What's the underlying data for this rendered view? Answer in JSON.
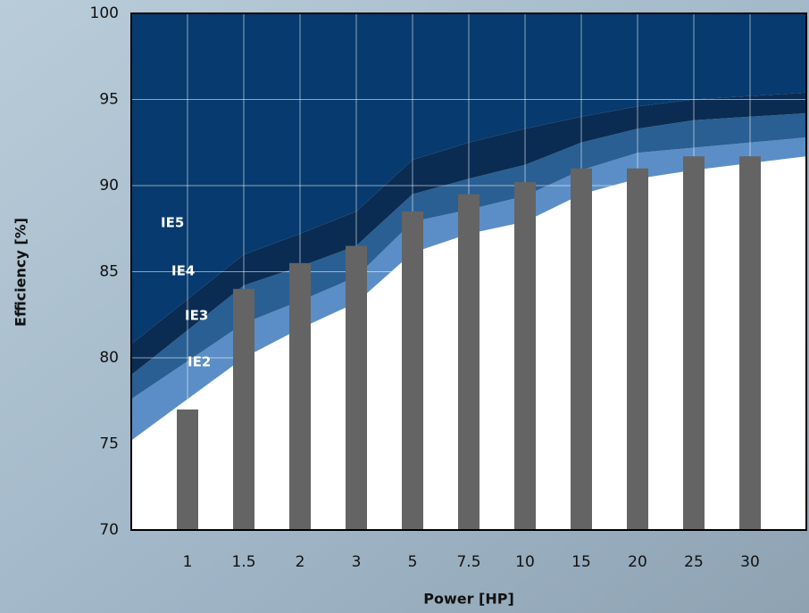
{
  "chart_data": {
    "type": "bar",
    "x_label": "Power [HP]",
    "y_label": "Efficiency [%]",
    "categories": [
      "1",
      "1.5",
      "2",
      "3",
      "5",
      "7.5",
      "10",
      "15",
      "20",
      "25",
      "30"
    ],
    "values": [
      77.0,
      84.0,
      85.5,
      86.5,
      88.5,
      89.5,
      90.2,
      91.0,
      91.0,
      91.7,
      91.7
    ],
    "color": "#646464",
    "bands": [
      {
        "name": "IE2",
        "color": "#5b8ec6",
        "values": [
          77.6,
          80.0,
          81.7,
          83.2,
          86.1,
          87.2,
          87.9,
          89.5,
          90.4,
          90.9,
          91.3
        ]
      },
      {
        "name": "IE3",
        "color": "#2a5f93",
        "values": [
          79.8,
          82.0,
          83.3,
          84.7,
          87.9,
          88.6,
          89.4,
          90.9,
          91.9,
          92.2,
          92.5
        ]
      },
      {
        "name": "IE4",
        "color": "#0b2c52",
        "values": [
          81.6,
          84.2,
          85.3,
          86.5,
          89.5,
          90.4,
          91.2,
          92.5,
          93.3,
          93.8,
          94.0
        ]
      },
      {
        "name": "IE5",
        "color": "#073a6e",
        "values": [
          83.4,
          86.0,
          87.2,
          88.5,
          91.5,
          92.5,
          93.3,
          94.0,
          94.6,
          95.0,
          95.2
        ]
      }
    ],
    "ylim": [
      70,
      100
    ],
    "yticks": [
      70,
      75,
      80,
      85,
      90,
      95,
      100
    ],
    "grid": true
  }
}
